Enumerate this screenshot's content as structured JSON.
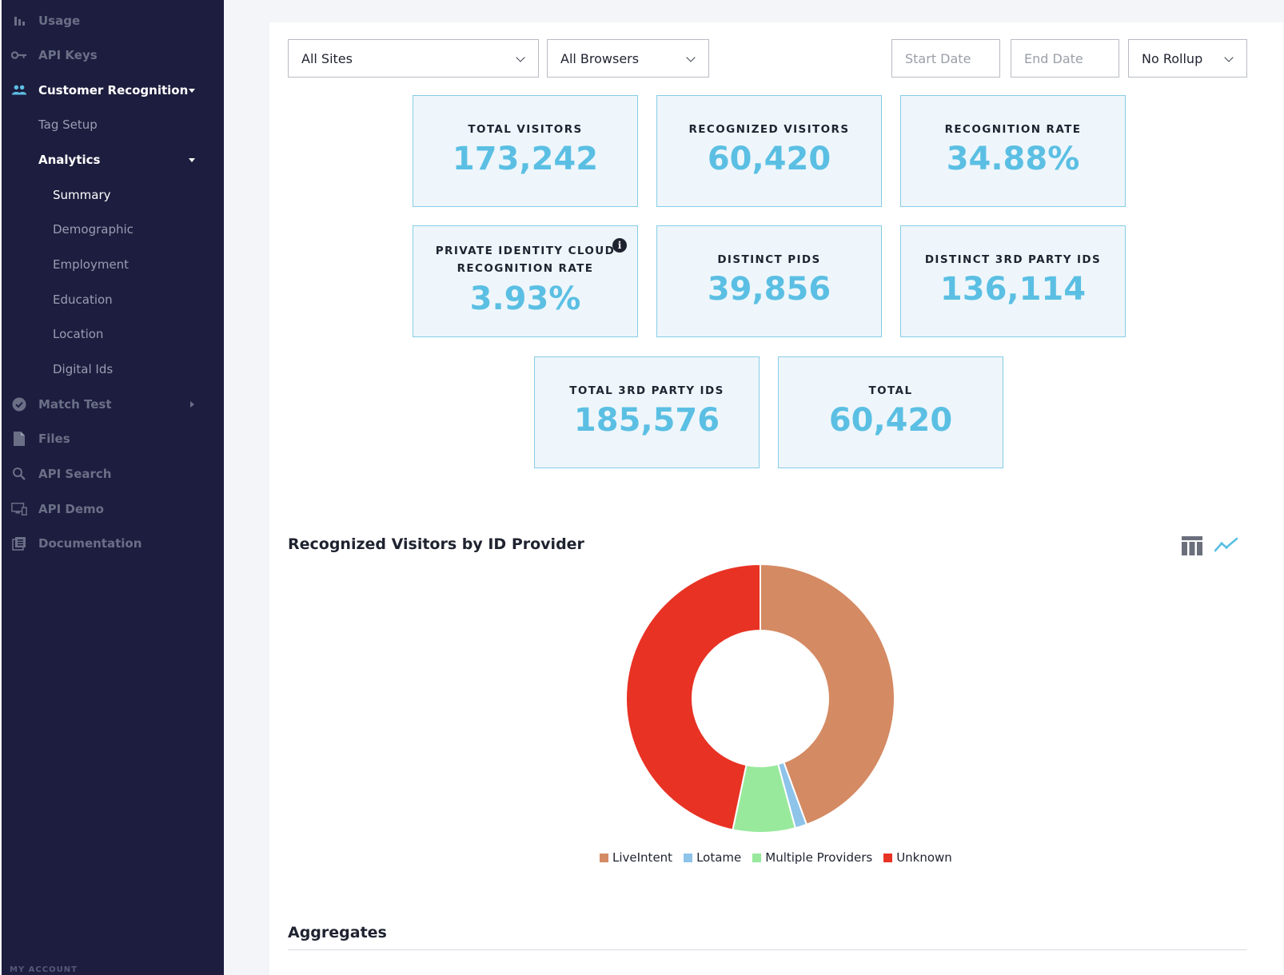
{
  "sidebar": {
    "items": [
      {
        "label": "Usage",
        "icon": "bar-chart-icon"
      },
      {
        "label": "API Keys",
        "icon": "key-icon"
      },
      {
        "label": "Customer Recognition",
        "icon": "people-icon"
      },
      {
        "label": "Tag Setup"
      },
      {
        "label": "Analytics"
      },
      {
        "label": "Summary"
      },
      {
        "label": "Demographic"
      },
      {
        "label": "Employment"
      },
      {
        "label": "Education"
      },
      {
        "label": "Location"
      },
      {
        "label": "Digital Ids"
      },
      {
        "label": "Match Test",
        "icon": "check-circle-icon"
      },
      {
        "label": "Files",
        "icon": "file-icon"
      },
      {
        "label": "API Search",
        "icon": "search-icon"
      },
      {
        "label": "API Demo",
        "icon": "monitor-icon"
      },
      {
        "label": "Documentation",
        "icon": "docs-icon"
      }
    ],
    "footer": "MY ACCOUNT"
  },
  "filters": {
    "site": "All Sites",
    "browser": "All Browsers",
    "start_placeholder": "Start Date",
    "end_placeholder": "End Date",
    "rollup": "No Rollup"
  },
  "stats": [
    {
      "title": "TOTAL VISITORS",
      "value": "173,242"
    },
    {
      "title": "RECOGNIZED VISITORS",
      "value": "60,420"
    },
    {
      "title": "RECOGNITION RATE",
      "value": "34.88%"
    },
    {
      "title_line1": "PRIVATE IDENTITY CLOUD",
      "title_line2": "RECOGNITION RATE",
      "value": "3.93%",
      "info": "i"
    },
    {
      "title": "DISTINCT PIDS",
      "value": "39,856"
    },
    {
      "title": "DISTINCT 3RD PARTY IDS",
      "value": "136,114"
    },
    {
      "title": "TOTAL 3RD PARTY IDS",
      "value": "185,576"
    },
    {
      "title": "TOTAL",
      "value": "60,420"
    }
  ],
  "chart_section": {
    "title": "Recognized Visitors by ID Provider",
    "view_icons": [
      "table-icon",
      "line-chart-icon"
    ]
  },
  "chart_data": {
    "type": "pie",
    "title": "",
    "categories": [
      "LiveIntent",
      "Lotame",
      "Multiple Providers",
      "Unknown"
    ],
    "values": [
      0.444,
      0.014,
      0.075,
      0.467
    ],
    "colors": [
      "#d48a63",
      "#8ec3ea",
      "#98e99c",
      "#e83224"
    ]
  },
  "aggregates_title": "Aggregates"
}
